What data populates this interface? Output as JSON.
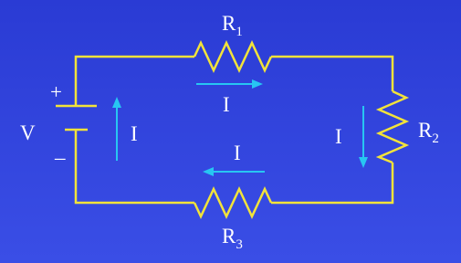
{
  "resistors": [
    {
      "symbol": "R",
      "subscript": "1"
    },
    {
      "symbol": "R",
      "subscript": "2"
    },
    {
      "symbol": "R",
      "subscript": "3"
    }
  ],
  "source": {
    "label": "V",
    "positive": "+",
    "negative": "–"
  },
  "currents": [
    "I",
    "I",
    "I",
    "I"
  ]
}
